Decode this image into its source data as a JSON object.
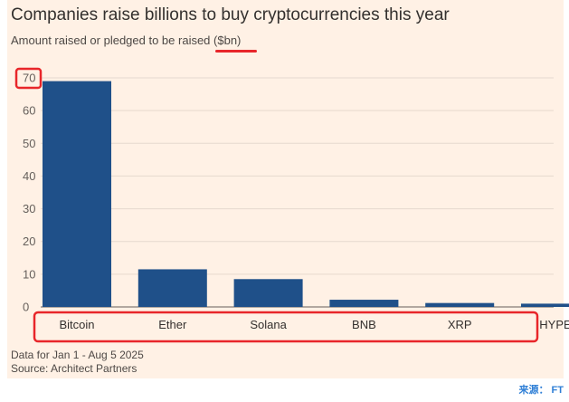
{
  "title": "Companies raise billions to buy cryptocurrencies this year",
  "subtitle_prefix": "Amount raised or pledged to be raised ",
  "subtitle_unit": "($bn)",
  "notes": [
    "Data for Jan 1 - Aug 5 2025",
    "Source: Architect Partners"
  ],
  "credit_label": "来源：",
  "credit_value": "FT",
  "colors": {
    "bar": "#1f5089",
    "background": "#fff1e5",
    "grid": "#e6d9ce",
    "highlight": "#e8262a"
  },
  "chart_data": {
    "type": "bar",
    "title": "Companies raise billions to buy cryptocurrencies this year",
    "subtitle": "Amount raised or pledged to be raised ($bn)",
    "categories": [
      "Bitcoin",
      "Ether",
      "Solana",
      "BNB",
      "XRP",
      "HYPE"
    ],
    "values": [
      69,
      11.5,
      8.5,
      2.2,
      1.2,
      1.0
    ],
    "ylim": [
      0,
      70
    ],
    "yticks": [
      0,
      10,
      20,
      30,
      40,
      50,
      60,
      70
    ],
    "grid": true,
    "highlights": [
      "top y tick 70 boxed",
      "category labels boxed",
      "unit ($bn) underlined"
    ]
  }
}
